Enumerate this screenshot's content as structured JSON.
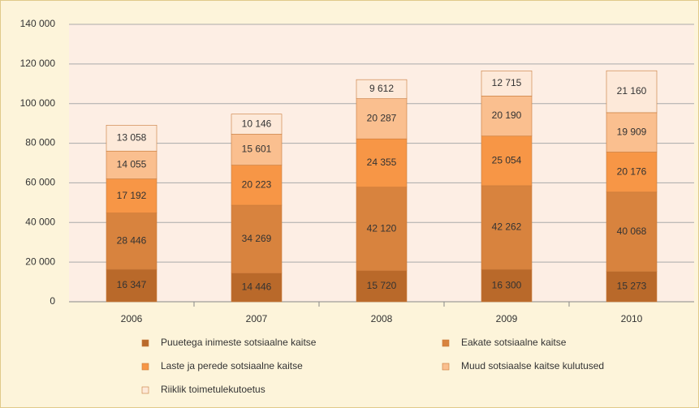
{
  "chart_data": {
    "type": "stacked_bar",
    "categories": [
      "2006",
      "2007",
      "2008",
      "2009",
      "2010"
    ],
    "series": [
      {
        "name": "Puuetega inimeste sotsiaalne kaitse",
        "color": "#b9692a",
        "values": [
          16347,
          14446,
          15720,
          16300,
          15273
        ],
        "value_labels": [
          "16 347",
          "14 446",
          "15 720",
          "16 300",
          "15 273"
        ]
      },
      {
        "name": "Eakate sotsiaalne kaitse",
        "color": "#d8833e",
        "values": [
          28446,
          34269,
          42120,
          42262,
          40068
        ],
        "value_labels": [
          "28 446",
          "34 269",
          "42 120",
          "42 262",
          "40 068"
        ]
      },
      {
        "name": "Laste ja perede sotsiaalne kaitse",
        "color": "#f79646",
        "values": [
          17192,
          20223,
          24355,
          25054,
          20176
        ],
        "value_labels": [
          "17 192",
          "20 223",
          "24 355",
          "25 054",
          "20 176"
        ]
      },
      {
        "name": "Muud sotsiaalse kaitse kulutused",
        "color": "#fabf8f",
        "values": [
          14055,
          15601,
          20287,
          20190,
          19909
        ],
        "value_labels": [
          "14 055",
          "15 601",
          "20 287",
          "20 190",
          "19 909"
        ]
      },
      {
        "name": "Riiklik toimetulekutoetus",
        "color": "#fde9d9",
        "values": [
          13058,
          10146,
          9612,
          12715,
          21160
        ],
        "value_labels": [
          "13 058",
          "10 146",
          "9 612",
          "12 715",
          "21 160"
        ]
      }
    ],
    "ylim": [
      0,
      140000
    ],
    "yticks": [
      0,
      {
        "value": 20000,
        "label": "20 000"
      },
      {
        "value": 40000,
        "label": "40 000"
      },
      {
        "value": 60000,
        "label": "60 000"
      },
      {
        "value": 80000,
        "label": "80 000"
      },
      {
        "value": 100000,
        "label": "100 000"
      },
      {
        "value": 120000,
        "label": "120 000"
      },
      {
        "value": 140000,
        "label": "140 000"
      }
    ],
    "grid": true
  }
}
